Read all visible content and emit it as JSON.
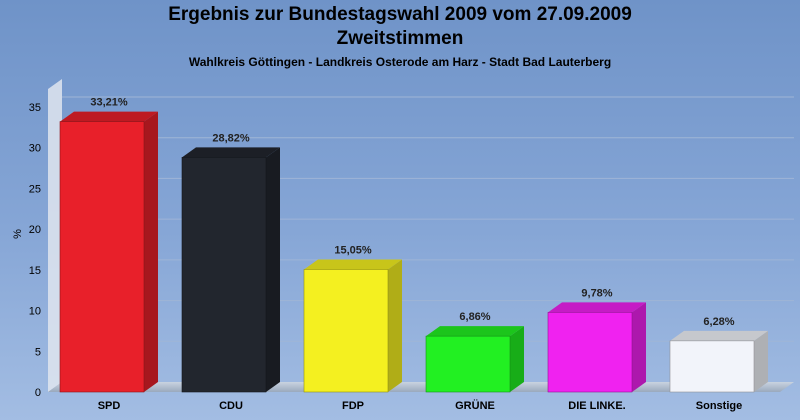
{
  "header": {
    "title": "Ergebnis zur Bundestagswahl 2009 vom 27.09.2009",
    "title2": "Zweitstimmen",
    "subtitle": "Wahlkreis Göttingen - Landkreis Osterode am Harz - Stadt Bad Lauterberg"
  },
  "chart_data": {
    "type": "bar",
    "title": "Ergebnis zur Bundestagswahl 2009 vom 27.09.2009",
    "subtitle": "Zweitstimmen",
    "xlabel": "",
    "ylabel": "%",
    "ylim": [
      0,
      35
    ],
    "yticks": [
      0,
      5,
      10,
      15,
      20,
      25,
      30,
      35
    ],
    "grid": true,
    "categories": [
      "SPD",
      "CDU",
      "FDP",
      "GRÜNE",
      "DIE LINKE.",
      "Sonstige"
    ],
    "values": [
      33.21,
      28.82,
      15.05,
      6.86,
      9.78,
      6.28
    ],
    "value_labels": [
      "33,21%",
      "28,82%",
      "15,05%",
      "6,86%",
      "9,78%",
      "6,28%"
    ],
    "colors": [
      "#e8202a",
      "#22262e",
      "#f4f020",
      "#22f022",
      "#f022f0",
      "#f2f4fa"
    ]
  }
}
